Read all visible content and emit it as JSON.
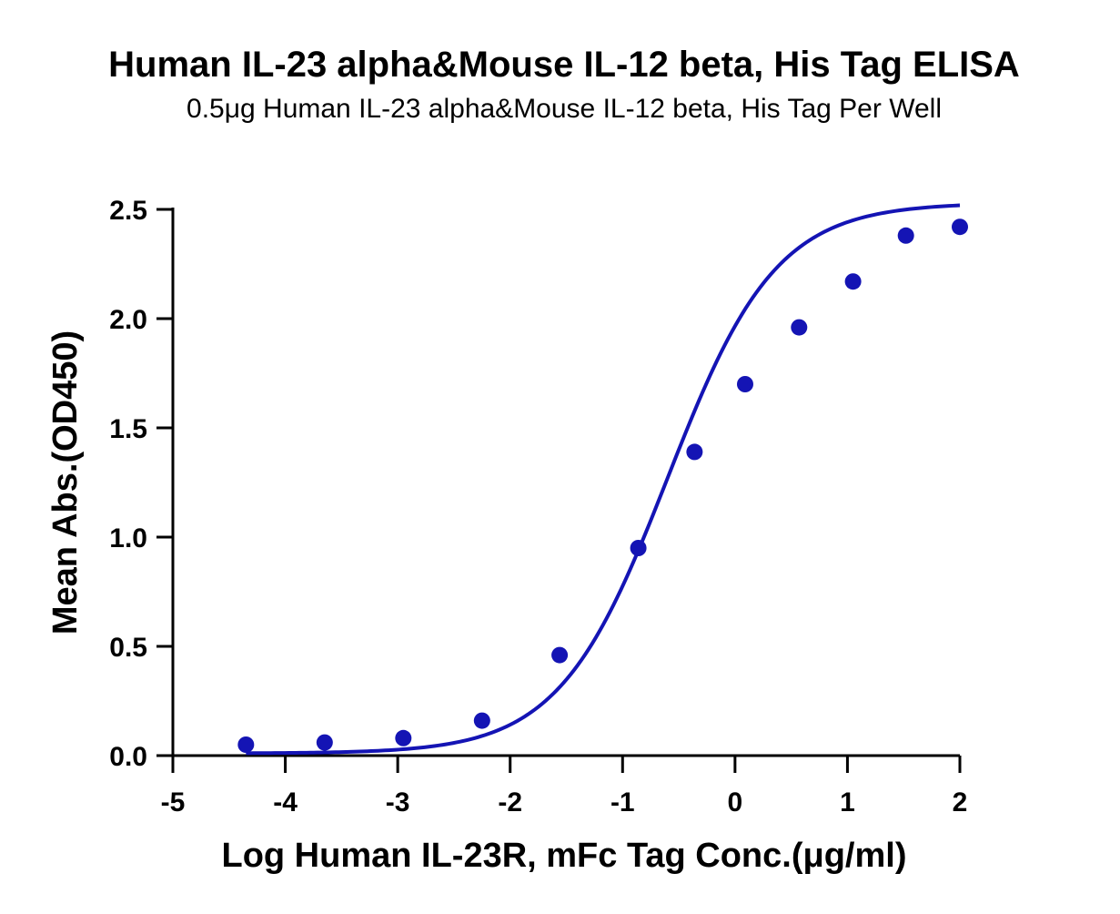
{
  "chart_data": {
    "type": "scatter",
    "title": "Human IL-23 alpha&Mouse IL-12 beta, His Tag ELISA",
    "subtitle": "0.5μg Human IL-23 alpha&Mouse IL-12 beta, His Tag Per Well",
    "xlabel": "Log Human IL-23R, mFc Tag Conc.(μg/ml)",
    "ylabel": "Mean Abs.(OD450)",
    "xlim": [
      -5,
      2
    ],
    "ylim": [
      0,
      2.5
    ],
    "xticks": [
      -5,
      -4,
      -3,
      -2,
      -1,
      0,
      1,
      2
    ],
    "yticks": [
      0.0,
      0.5,
      1.0,
      1.5,
      2.0,
      2.5
    ],
    "xtick_labels": [
      "-5",
      "-4",
      "-3",
      "-2",
      "-1",
      "0",
      "1",
      "2"
    ],
    "ytick_labels": [
      "0.0",
      "0.5",
      "1.0",
      "1.5",
      "2.0",
      "2.5"
    ],
    "grid": false,
    "color": "#1414b4",
    "series": [
      {
        "points": [
          {
            "x": -4.35,
            "y": 0.05
          },
          {
            "x": -3.65,
            "y": 0.06
          },
          {
            "x": -2.95,
            "y": 0.08
          },
          {
            "x": -2.25,
            "y": 0.16
          },
          {
            "x": -1.56,
            "y": 0.46
          },
          {
            "x": -0.86,
            "y": 0.95
          },
          {
            "x": -0.36,
            "y": 1.39
          },
          {
            "x": 0.09,
            "y": 1.7
          },
          {
            "x": 0.57,
            "y": 1.96
          },
          {
            "x": 1.05,
            "y": 2.17
          },
          {
            "x": 1.52,
            "y": 2.38
          },
          {
            "x": 2.0,
            "y": 2.42
          }
        ],
        "fit": {
          "type": "4PL",
          "bottom": 0.01,
          "top": 2.53,
          "log_ec50": -0.6,
          "hill": 0.9,
          "x_range": [
            -4.35,
            2.0
          ]
        }
      }
    ]
  }
}
